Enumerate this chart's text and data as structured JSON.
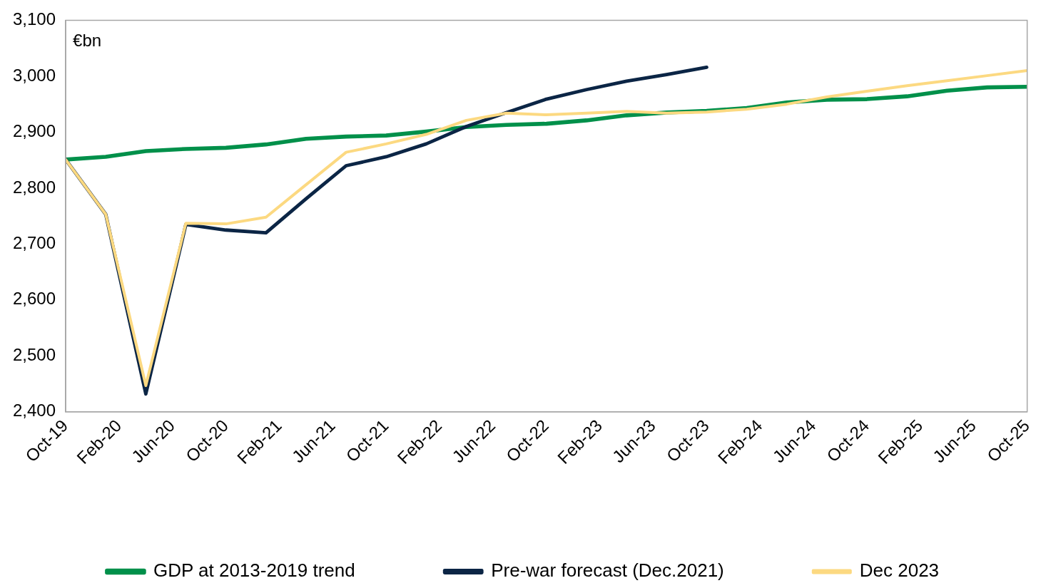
{
  "chart_data": {
    "type": "line",
    "ylabel": "€bn",
    "legend": "bottom",
    "grid": false,
    "marker": "none",
    "line_style": "solid",
    "x": [
      "2019-10",
      "2020-01",
      "2020-04",
      "2020-07",
      "2020-10",
      "2021-01",
      "2021-04",
      "2021-07",
      "2021-10",
      "2022-01",
      "2022-04",
      "2022-07",
      "2022-10",
      "2023-01",
      "2023-04",
      "2023-07",
      "2023-10",
      "2024-01",
      "2024-04",
      "2024-07",
      "2024-10",
      "2025-01",
      "2025-04",
      "2025-07",
      "2025-10"
    ],
    "xlim": [
      "2019-10",
      "2025-10"
    ],
    "xticks": [
      {
        "value": "2019-10",
        "label": "Oct-19"
      },
      {
        "value": "2020-02",
        "label": "Feb-20"
      },
      {
        "value": "2020-06",
        "label": "Jun-20"
      },
      {
        "value": "2020-10",
        "label": "Oct-20"
      },
      {
        "value": "2021-02",
        "label": "Feb-21"
      },
      {
        "value": "2021-06",
        "label": "Jun-21"
      },
      {
        "value": "2021-10",
        "label": "Oct-21"
      },
      {
        "value": "2022-02",
        "label": "Feb-22"
      },
      {
        "value": "2022-06",
        "label": "Jun-22"
      },
      {
        "value": "2022-10",
        "label": "Oct-22"
      },
      {
        "value": "2023-02",
        "label": "Feb-23"
      },
      {
        "value": "2023-06",
        "label": "Jun-23"
      },
      {
        "value": "2023-10",
        "label": "Oct-23"
      },
      {
        "value": "2024-02",
        "label": "Feb-24"
      },
      {
        "value": "2024-06",
        "label": "Jun-24"
      },
      {
        "value": "2024-10",
        "label": "Oct-24"
      },
      {
        "value": "2025-02",
        "label": "Feb-25"
      },
      {
        "value": "2025-06",
        "label": "Jun-25"
      },
      {
        "value": "2025-10",
        "label": "Oct-25"
      }
    ],
    "ylim": [
      2400,
      3100
    ],
    "yticks": [
      {
        "value": 2400,
        "label": "2,400"
      },
      {
        "value": 2500,
        "label": "2,500"
      },
      {
        "value": 2600,
        "label": "2,600"
      },
      {
        "value": 2700,
        "label": "2,700"
      },
      {
        "value": 2800,
        "label": "2,800"
      },
      {
        "value": 2900,
        "label": "2,900"
      },
      {
        "value": 3000,
        "label": "3,000"
      },
      {
        "value": 3100,
        "label": "3,100"
      }
    ],
    "series": [
      {
        "name": "GDP at 2013-2019 trend",
        "color": "#00904a",
        "values": [
          2851,
          2856,
          2866,
          2870,
          2872,
          2878,
          2888,
          2892,
          2894,
          2901,
          2909,
          2913,
          2915,
          2921,
          2930,
          2935,
          2938,
          2943,
          2953,
          2958,
          2959,
          2964,
          2974,
          2980,
          2981
        ]
      },
      {
        "name": "Pre-war forecast (Dec.2021)",
        "color": "#0b2545",
        "values": [
          2851,
          2753,
          2432,
          2735,
          2725,
          2720,
          2781,
          2840,
          2856,
          2879,
          2910,
          2935,
          2959,
          2976,
          2991,
          3003,
          3016,
          null,
          null,
          null,
          null,
          null,
          null,
          null,
          null
        ]
      },
      {
        "name": "Dec 2023",
        "color": "#fcd981",
        "values": [
          2851,
          2753,
          2447,
          2737,
          2736,
          2748,
          2806,
          2864,
          2879,
          2896,
          2921,
          2934,
          2931,
          2934,
          2937,
          2934,
          2936,
          2941,
          2950,
          2963,
          2973,
          2983,
          2992,
          3001,
          3010
        ]
      }
    ]
  }
}
